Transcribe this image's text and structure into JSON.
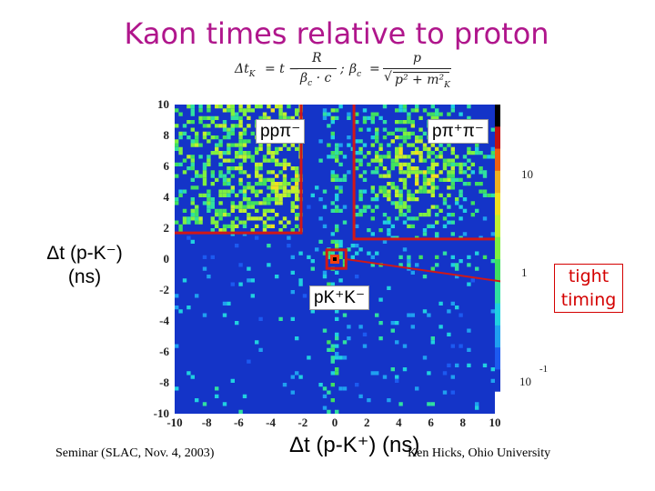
{
  "title": "Kaon times relative to proton",
  "formula": {
    "lhs1": "Δt",
    "lhs1_sub": "K",
    "rhs1_pre": "= t −",
    "rhs1_num": "R",
    "rhs1_den": "β",
    "rhs1_den_sub": "c",
    "rhs1_den_tail": "· c",
    "sep": ";",
    "lhs2": "β",
    "lhs2_sub": "c",
    "rhs2_eq": "=",
    "rhs2_num": "p",
    "rhs2_den": "p² + m²",
    "rhs2_den_sub": "K"
  },
  "y_label_line1": "Δt (p-K⁻)",
  "y_label_line2": "(ns)",
  "x_label": "Δt (p-K⁺) (ns)",
  "region_labels": {
    "ppim": "ppπ⁻",
    "ppippim": "pπ⁺π⁻",
    "pkpkm": "pK⁺K⁻"
  },
  "annotation": {
    "line1": "tight",
    "line2": "timing"
  },
  "footer_left": "Seminar (SLAC, Nov. 4, 2003)",
  "footer_right": "Ken Hicks, Ohio University",
  "colors": {
    "title": "#b0168c",
    "cut_lines": "#d01818",
    "annotation": "#d40000",
    "plot_bg": "#1434c8"
  },
  "chart_data": {
    "type": "heatmap",
    "title": "Kaon times relative to proton",
    "xlabel": "Δt (p-K⁺) (ns)",
    "ylabel": "Δt (p-K⁻) (ns)",
    "xlim": [
      -10,
      10
    ],
    "ylim": [
      -10,
      10
    ],
    "x_ticks": [
      "-10",
      "-8",
      "-6",
      "-4",
      "-2",
      "0",
      "2",
      "4",
      "6",
      "8",
      "10"
    ],
    "y_ticks": [
      "10",
      "8",
      "6",
      "4",
      "2",
      "0",
      "-2",
      "-4",
      "-6",
      "-8",
      "-10"
    ],
    "z_scale": "log",
    "z_labels": [
      "10",
      "1",
      "10",
      "-1"
    ],
    "features": [
      {
        "name": "ppπ⁻ band",
        "x_range": [
          -10,
          -2
        ],
        "y_range": [
          1.5,
          10
        ]
      },
      {
        "name": "pπ⁺π⁻ region",
        "x_range": [
          1,
          10
        ],
        "y_range": [
          1.2,
          10
        ]
      },
      {
        "name": "pK⁺K⁻ peak",
        "x": 0,
        "y": 0
      }
    ],
    "cuts": [
      {
        "name": "ppπ⁻ cut",
        "vertices": [
          [
            -10,
            1.7
          ],
          [
            -2.1,
            1.7
          ],
          [
            -2.1,
            10
          ]
        ]
      },
      {
        "name": "pπ⁺π⁻ cut",
        "vertices": [
          [
            10,
            1.3
          ],
          [
            1.2,
            1.3
          ],
          [
            1.2,
            10
          ]
        ]
      },
      {
        "name": "pK⁺K⁻ box",
        "x_range": [
          -0.5,
          0.7
        ],
        "y_range": [
          -0.6,
          0.6
        ]
      }
    ]
  }
}
